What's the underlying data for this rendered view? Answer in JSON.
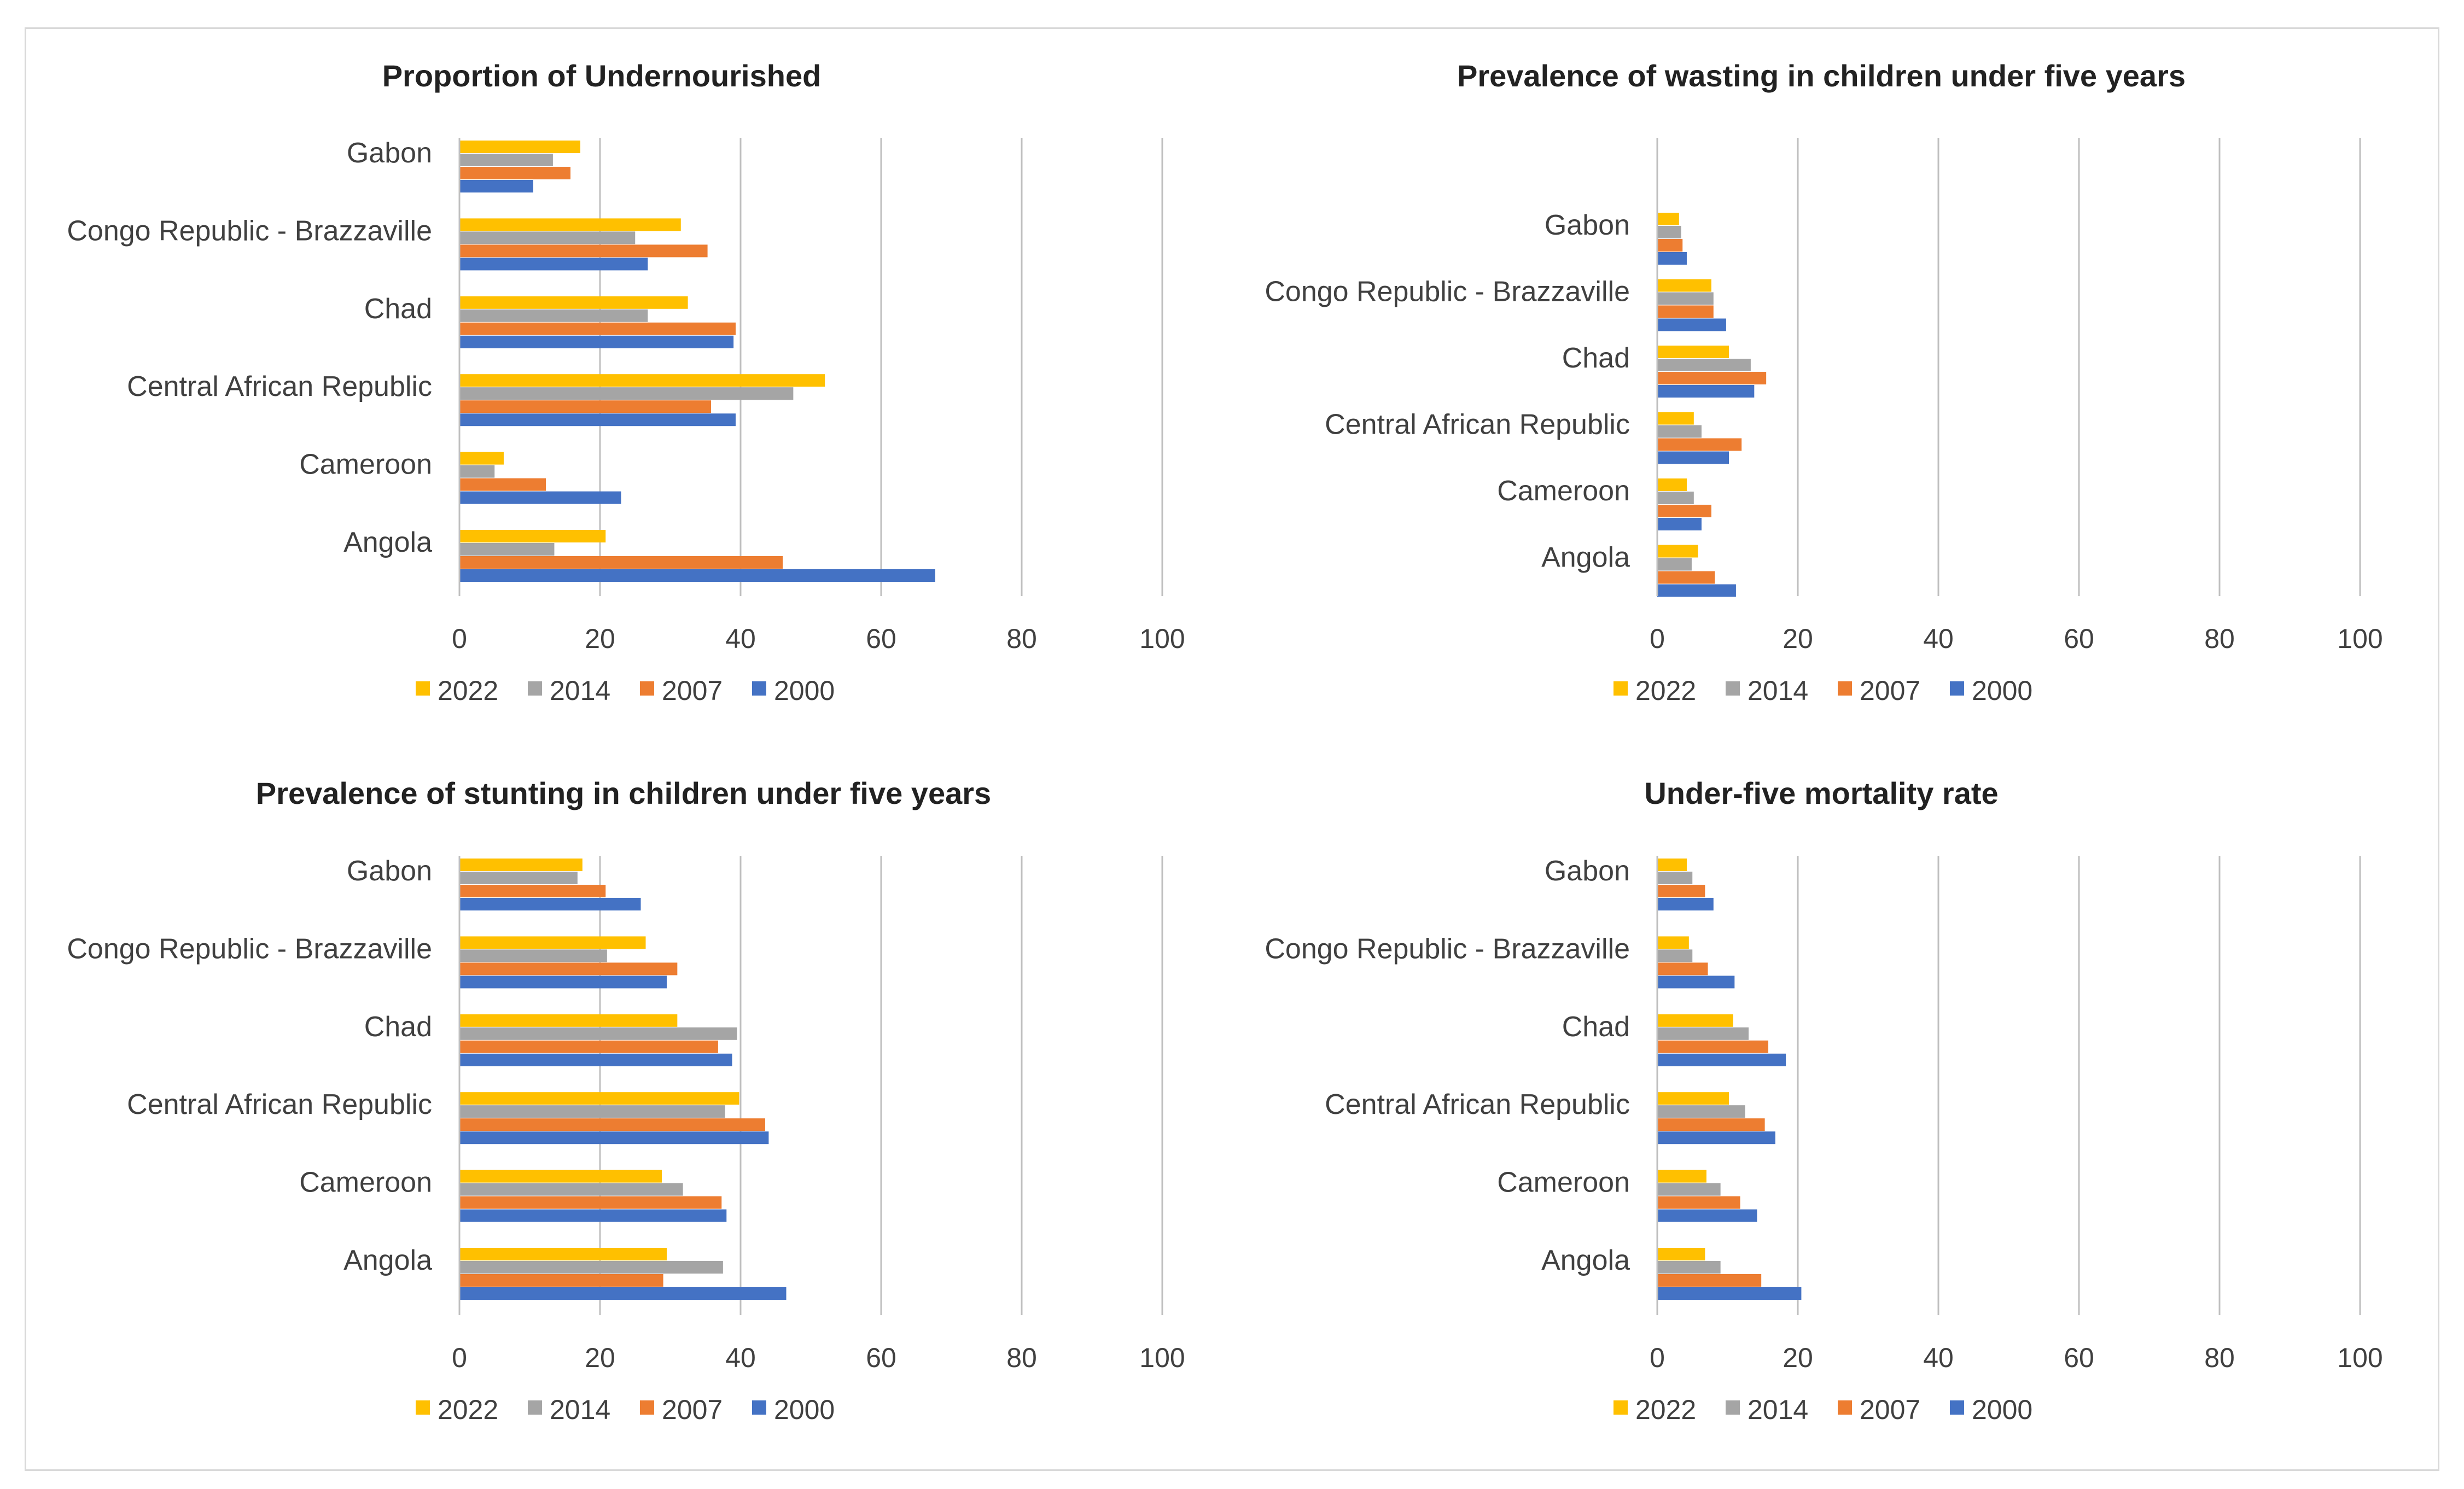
{
  "colors": {
    "2022": "#ffc000",
    "2014": "#a5a5a5",
    "2007": "#ed7d31",
    "2000": "#4472c4",
    "grid": "#bfbfbf"
  },
  "chart_data": [
    {
      "type": "bar",
      "orientation": "horizontal",
      "title": "Proportion of Undernourished",
      "categories": [
        "Angola",
        "Cameroon",
        "Central African Republic",
        "Chad",
        "Congo Republic - Brazzaville",
        "Gabon"
      ],
      "series": [
        {
          "name": "2022",
          "values": [
            20.8,
            6.3,
            52.0,
            32.5,
            31.5,
            17.2
          ]
        },
        {
          "name": "2014",
          "values": [
            13.5,
            5.0,
            47.5,
            26.8,
            25.0,
            13.3
          ]
        },
        {
          "name": "2007",
          "values": [
            46.0,
            12.3,
            35.8,
            39.3,
            35.3,
            15.8
          ]
        },
        {
          "name": "2000",
          "values": [
            67.7,
            23.0,
            39.3,
            39.0,
            26.8,
            10.5
          ]
        }
      ],
      "xlim": [
        0,
        100
      ],
      "xticks": [
        "0",
        "20",
        "40",
        "60",
        "80",
        "100"
      ],
      "legend": "bottom",
      "grid": true
    },
    {
      "type": "bar",
      "orientation": "horizontal",
      "title": "Prevalence of wasting  in children under five years",
      "categories": [
        "Angola",
        "Cameroon",
        "Central African Republic",
        "Chad",
        "Congo Republic - Brazzaville",
        "Gabon"
      ],
      "series": [
        {
          "name": "2022",
          "values": [
            5.8,
            4.2,
            5.2,
            10.2,
            7.7,
            3.1
          ]
        },
        {
          "name": "2014",
          "values": [
            4.9,
            5.2,
            6.3,
            13.3,
            8.0,
            3.4
          ]
        },
        {
          "name": "2007",
          "values": [
            8.2,
            7.7,
            12.0,
            15.5,
            8.0,
            3.6
          ]
        },
        {
          "name": "2000",
          "values": [
            11.2,
            6.3,
            10.2,
            13.8,
            9.8,
            4.2
          ]
        }
      ],
      "xlim": [
        0,
        100
      ],
      "xticks": [
        "0",
        "20",
        "40",
        "60",
        "80",
        "100"
      ],
      "legend": "bottom",
      "grid": true
    },
    {
      "type": "bar",
      "orientation": "horizontal",
      "title": "Prevalence of stunting  in children under five years",
      "categories": [
        "Angola",
        "Cameroon",
        "Central African Republic",
        "Chad",
        "Congo Republic - Brazzaville",
        "Gabon"
      ],
      "series": [
        {
          "name": "2022",
          "values": [
            29.5,
            28.8,
            39.8,
            31.0,
            26.5,
            17.5
          ]
        },
        {
          "name": "2014",
          "values": [
            37.5,
            31.8,
            37.8,
            39.5,
            21.0,
            16.8
          ]
        },
        {
          "name": "2007",
          "values": [
            29.0,
            37.3,
            43.5,
            36.8,
            31.0,
            20.8
          ]
        },
        {
          "name": "2000",
          "values": [
            46.5,
            38.0,
            44.0,
            38.8,
            29.5,
            25.8
          ]
        }
      ],
      "xlim": [
        0,
        100
      ],
      "xticks": [
        "0",
        "20",
        "40",
        "60",
        "80",
        "100"
      ],
      "legend": "bottom",
      "grid": true
    },
    {
      "type": "bar",
      "orientation": "horizontal",
      "title": "Under-five mortality rate",
      "categories": [
        "Angola",
        "Cameroon",
        "Central African Republic",
        "Chad",
        "Congo Republic - Brazzaville",
        "Gabon"
      ],
      "series": [
        {
          "name": "2022",
          "values": [
            6.8,
            7.0,
            10.2,
            10.8,
            4.5,
            4.2
          ]
        },
        {
          "name": "2014",
          "values": [
            9.0,
            9.0,
            12.5,
            13.0,
            5.0,
            5.0
          ]
        },
        {
          "name": "2007",
          "values": [
            14.8,
            11.8,
            15.3,
            15.8,
            7.2,
            6.8
          ]
        },
        {
          "name": "2000",
          "values": [
            20.5,
            14.2,
            16.8,
            18.3,
            11.0,
            8.0
          ]
        }
      ],
      "xlim": [
        0,
        100
      ],
      "xticks": [
        "0",
        "20",
        "40",
        "60",
        "80",
        "100"
      ],
      "legend": "bottom",
      "grid": true
    }
  ]
}
